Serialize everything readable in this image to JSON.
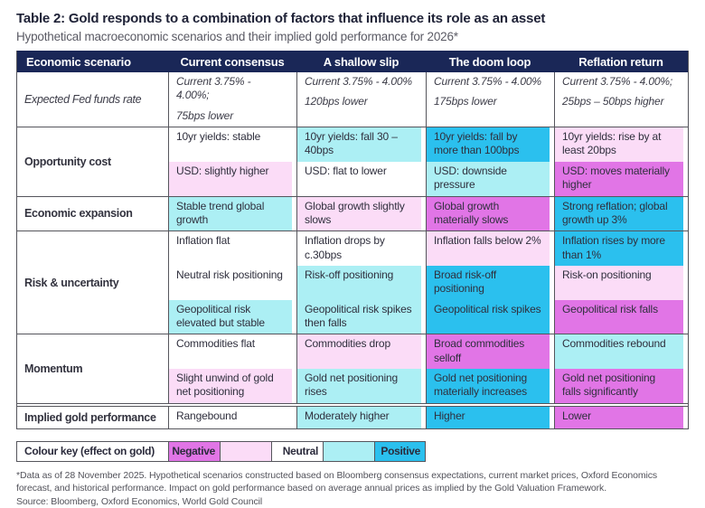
{
  "title": "Table 2: Gold responds to a combination of factors that influence its role as an asset",
  "subtitle": "Hypothetical macroeconomic scenarios and their implied gold performance for 2026*",
  "colors": {
    "header_bg": "#1a2757",
    "border": "#55555c",
    "tones": {
      "strong_negative": "#e175e6",
      "mild_negative": "#fbdcf7",
      "neutral_white": "#ffffff",
      "mild_positive": "#aceff4",
      "strong_positive": "#2bc0ee",
      "none": "transparent"
    }
  },
  "table": {
    "columns": [
      "Economic scenario",
      "Current consensus",
      "A shallow slip",
      "The doom loop",
      "Reflation return"
    ],
    "groups": [
      {
        "label": "Expected Fed funds rate",
        "label_style": "italic",
        "sub_rows": [
          [
            {
              "lines": [
                "Current 3.75% - 4.00%;",
                "75bps lower"
              ],
              "tone": "none"
            },
            {
              "lines": [
                "Current 3.75% - 4.00%",
                "120bps lower"
              ],
              "tone": "none"
            },
            {
              "lines": [
                "Current 3.75% - 4.00%",
                "175bps lower"
              ],
              "tone": "none"
            },
            {
              "lines": [
                "Current 3.75% - 4.00%;",
                "25bps – 50bps higher"
              ],
              "tone": "none"
            }
          ]
        ]
      },
      {
        "label": "Opportunity cost",
        "sub_rows": [
          [
            {
              "lines": [
                "10yr yields: stable"
              ],
              "tone": "none"
            },
            {
              "lines": [
                "10yr yields: fall 30 – 40bps"
              ],
              "tone": "mild_positive"
            },
            {
              "lines": [
                "10yr yields: fall by more than 100bps"
              ],
              "tone": "strong_positive"
            },
            {
              "lines": [
                "10yr yields: rise by at least 20bps"
              ],
              "tone": "mild_negative"
            }
          ],
          [
            {
              "lines": [
                "USD: slightly higher"
              ],
              "tone": "mild_negative"
            },
            {
              "lines": [
                "USD: flat to lower"
              ],
              "tone": "none"
            },
            {
              "lines": [
                "USD: downside pressure"
              ],
              "tone": "mild_positive"
            },
            {
              "lines": [
                "USD: moves materially higher"
              ],
              "tone": "strong_negative"
            }
          ]
        ]
      },
      {
        "label": "Economic expansion",
        "sub_rows": [
          [
            {
              "lines": [
                "Stable trend global growth"
              ],
              "tone": "mild_positive"
            },
            {
              "lines": [
                "Global growth slightly slows"
              ],
              "tone": "mild_negative"
            },
            {
              "lines": [
                "Global growth materially slows"
              ],
              "tone": "strong_negative"
            },
            {
              "lines": [
                "Strong reflation; global growth up 3%"
              ],
              "tone": "strong_positive"
            }
          ]
        ]
      },
      {
        "label": "Risk & uncertainty",
        "sub_rows": [
          [
            {
              "lines": [
                "Inflation flat"
              ],
              "tone": "none"
            },
            {
              "lines": [
                "Inflation drops by c.30bps"
              ],
              "tone": "none"
            },
            {
              "lines": [
                "Inflation falls below 2%"
              ],
              "tone": "mild_negative"
            },
            {
              "lines": [
                "Inflation rises by more than 1%"
              ],
              "tone": "strong_positive"
            }
          ],
          [
            {
              "lines": [
                "Neutral risk positioning"
              ],
              "tone": "none"
            },
            {
              "lines": [
                "Risk-off positioning"
              ],
              "tone": "mild_positive"
            },
            {
              "lines": [
                "Broad risk-off positioning"
              ],
              "tone": "strong_positive"
            },
            {
              "lines": [
                "Risk-on positioning"
              ],
              "tone": "mild_negative"
            }
          ],
          [
            {
              "lines": [
                "Geopolitical risk elevated but stable"
              ],
              "tone": "mild_positive"
            },
            {
              "lines": [
                "Geopolitical risk spikes then falls"
              ],
              "tone": "mild_positive"
            },
            {
              "lines": [
                "Geopolitical risk spikes"
              ],
              "tone": "strong_positive"
            },
            {
              "lines": [
                "Geopolitical risk falls"
              ],
              "tone": "strong_negative"
            }
          ]
        ]
      },
      {
        "label": "Momentum",
        "sub_rows": [
          [
            {
              "lines": [
                "Commodities flat"
              ],
              "tone": "none"
            },
            {
              "lines": [
                "Commodities drop"
              ],
              "tone": "mild_negative"
            },
            {
              "lines": [
                "Broad commodities selloff"
              ],
              "tone": "strong_negative"
            },
            {
              "lines": [
                "Commodities rebound"
              ],
              "tone": "mild_positive"
            }
          ],
          [
            {
              "lines": [
                "Slight unwind of gold net positioning"
              ],
              "tone": "mild_negative"
            },
            {
              "lines": [
                "Gold net positioning rises"
              ],
              "tone": "mild_positive"
            },
            {
              "lines": [
                "Gold net positioning materially increases"
              ],
              "tone": "strong_positive"
            },
            {
              "lines": [
                "Gold net positioning falls significantly"
              ],
              "tone": "strong_negative"
            }
          ]
        ]
      },
      {
        "label": "Implied gold performance",
        "divider_before": "double",
        "sub_rows": [
          [
            {
              "lines": [
                "Rangebound"
              ],
              "tone": "none"
            },
            {
              "lines": [
                "Moderately higher"
              ],
              "tone": "mild_positive"
            },
            {
              "lines": [
                "Higher"
              ],
              "tone": "strong_positive"
            },
            {
              "lines": [
                "Lower"
              ],
              "tone": "strong_negative"
            }
          ]
        ]
      }
    ]
  },
  "color_key": {
    "label": "Colour key (effect on gold)",
    "items": [
      {
        "label": "Negative",
        "tone": "strong_negative"
      },
      {
        "label": "",
        "tone": "mild_negative"
      },
      {
        "label": "Neutral",
        "tone": "neutral_white"
      },
      {
        "label": "",
        "tone": "mild_positive"
      },
      {
        "label": "Positive",
        "tone": "strong_positive"
      }
    ]
  },
  "footnotes": {
    "data_note": "*Data as of 28 November 2025. Hypothetical scenarios constructed based on Bloomberg consensus expectations, current market prices, Oxford Economics forecast, and historical performance. Impact on gold performance based on average annual prices as implied by the Gold Valuation Framework.",
    "source": "Source: Bloomberg, Oxford Economics, World Gold Council"
  }
}
